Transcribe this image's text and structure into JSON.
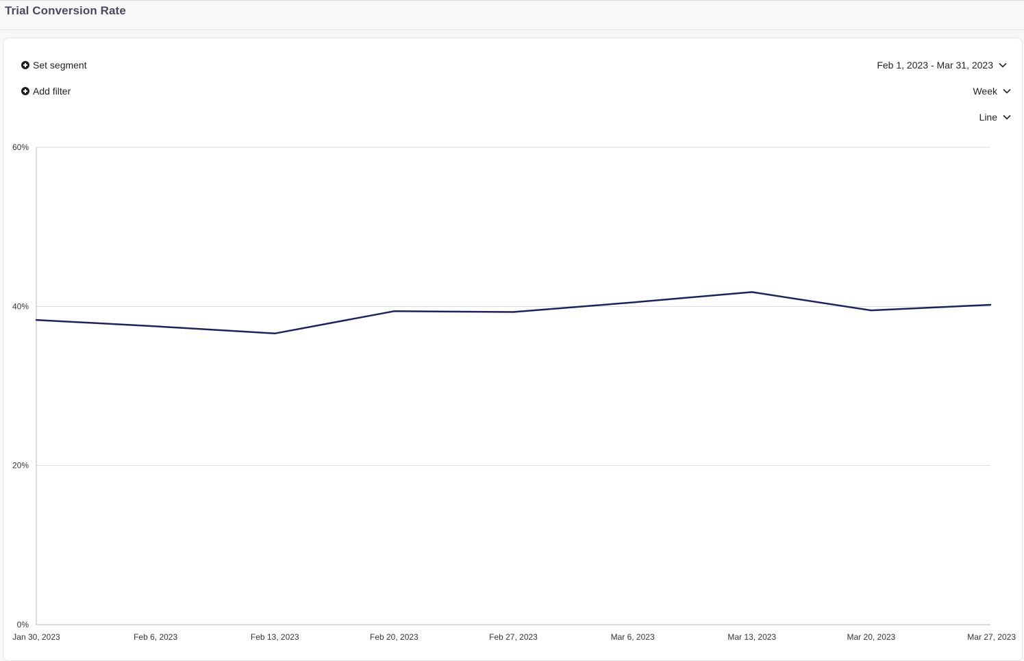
{
  "header": {
    "title": "Trial Conversion Rate"
  },
  "controls": {
    "set_segment": "Set segment",
    "add_filter": "Add filter",
    "date_range": "Feb 1, 2023 - Mar 31, 2023",
    "interval": "Week",
    "chart_type": "Line"
  },
  "colors": {
    "line": "#1b2359",
    "grid": "#d9d9d9",
    "axis": "#b8b8b8"
  },
  "chart_data": {
    "type": "line",
    "title": "",
    "xlabel": "",
    "ylabel": "",
    "x": [
      "Jan 30, 2023",
      "Feb 6, 2023",
      "Feb 13, 2023",
      "Feb 20, 2023",
      "Feb 27, 2023",
      "Mar 6, 2023",
      "Mar 13, 2023",
      "Mar 20, 2023",
      "Mar 27, 2023"
    ],
    "series": [
      {
        "values": [
          38.3,
          37.5,
          36.6,
          39.4,
          39.3,
          40.5,
          41.8,
          39.5,
          40.2
        ]
      }
    ],
    "ylim": [
      0,
      60
    ],
    "yticks": [
      0,
      20,
      40,
      60
    ],
    "ytick_labels": [
      "0%",
      "20%",
      "40%",
      "60%"
    ],
    "grid": true,
    "legend": "none"
  }
}
